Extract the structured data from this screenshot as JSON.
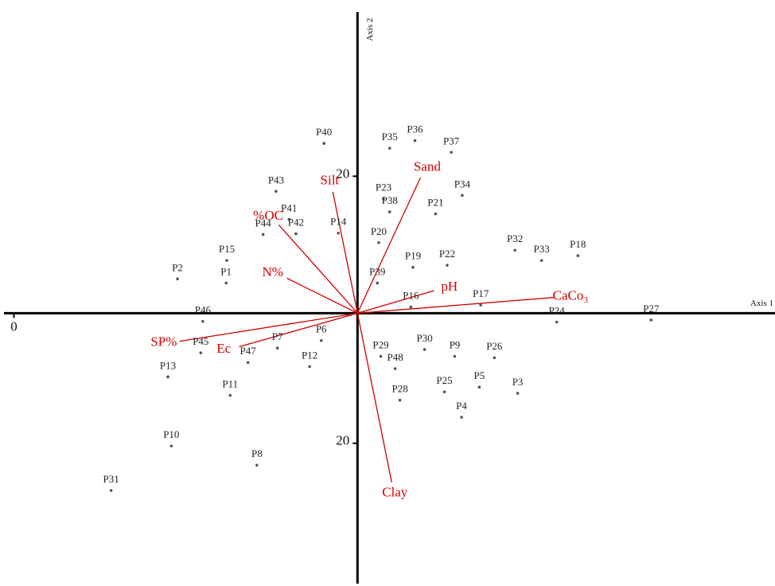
{
  "chart_data": {
    "type": "biplot",
    "x_label": "Axis 1",
    "y_label": "Axis 2",
    "xlim": [
      -52,
      61
    ],
    "ylim": [
      -39.5,
      44
    ],
    "xticks": [
      {
        "value": -50.2,
        "label": "0"
      }
    ],
    "yticks": [
      20,
      {
        "value": -19,
        "label": "20"
      }
    ],
    "point_color": "#555555",
    "vector_color": "#d00000",
    "points": [
      {
        "label": "P40",
        "x": -4.9,
        "y": 24.8
      },
      {
        "label": "P35",
        "x": 4.7,
        "y": 24.1
      },
      {
        "label": "P36",
        "x": 8.4,
        "y": 25.2
      },
      {
        "label": "P37",
        "x": 13.7,
        "y": 23.5
      },
      {
        "label": "P43",
        "x": -11.9,
        "y": 17.8
      },
      {
        "label": "P23",
        "x": 3.8,
        "y": 16.7
      },
      {
        "label": "P34",
        "x": 15.3,
        "y": 17.2
      },
      {
        "label": "P41",
        "x": -10,
        "y": 13.7
      },
      {
        "label": "P38",
        "x": 4.7,
        "y": 14.8
      },
      {
        "label": "P21",
        "x": 11.4,
        "y": 14.5
      },
      {
        "label": "P42",
        "x": -9,
        "y": 11.6
      },
      {
        "label": "P44",
        "x": -13.8,
        "y": 11.5
      },
      {
        "label": "P14",
        "x": -2.8,
        "y": 11.7
      },
      {
        "label": "P20",
        "x": 3.1,
        "y": 10.3
      },
      {
        "label": "P15",
        "x": -19.1,
        "y": 7.7
      },
      {
        "label": "P32",
        "x": 23,
        "y": 9.2
      },
      {
        "label": "P18",
        "x": 32.2,
        "y": 8.4
      },
      {
        "label": "P33",
        "x": 26.9,
        "y": 7.7
      },
      {
        "label": "P19",
        "x": 8.1,
        "y": 6.7
      },
      {
        "label": "P22",
        "x": 13.1,
        "y": 7
      },
      {
        "label": "P39",
        "x": 2.9,
        "y": 4.4
      },
      {
        "label": "P2",
        "x": -26.3,
        "y": 5
      },
      {
        "label": "P1",
        "x": -19.2,
        "y": 4.4
      },
      {
        "label": "P16",
        "x": 7.8,
        "y": 0.9
      },
      {
        "label": "P17",
        "x": 18,
        "y": 1.2
      },
      {
        "label": "P24",
        "x": 29.1,
        "y": -1.3
      },
      {
        "label": "P27",
        "x": 42.9,
        "y": -1
      },
      {
        "label": "P46",
        "x": -22.6,
        "y": -1.2
      },
      {
        "label": "P7",
        "x": -11.7,
        "y": -5.1
      },
      {
        "label": "P6",
        "x": -5.3,
        "y": -4
      },
      {
        "label": "P29",
        "x": 3.4,
        "y": -6.3
      },
      {
        "label": "P30",
        "x": 9.8,
        "y": -5.3
      },
      {
        "label": "P9",
        "x": 14.2,
        "y": -6.3
      },
      {
        "label": "P26",
        "x": 20,
        "y": -6.5
      },
      {
        "label": "P45",
        "x": -22.9,
        "y": -5.8
      },
      {
        "label": "P47",
        "x": -16,
        "y": -7.2
      },
      {
        "label": "P12",
        "x": -7,
        "y": -7.8
      },
      {
        "label": "P48",
        "x": 5.5,
        "y": -8.1
      },
      {
        "label": "P25",
        "x": 12.7,
        "y": -11.5
      },
      {
        "label": "P13",
        "x": -27.7,
        "y": -9.3
      },
      {
        "label": "P5",
        "x": 17.8,
        "y": -10.8
      },
      {
        "label": "P3",
        "x": 23.4,
        "y": -11.7
      },
      {
        "label": "P11",
        "x": -18.6,
        "y": -12
      },
      {
        "label": "P28",
        "x": 6.2,
        "y": -12.7
      },
      {
        "label": "P4",
        "x": 15.2,
        "y": -15.2
      },
      {
        "label": "P10",
        "x": -27.2,
        "y": -19.4
      },
      {
        "label": "P8",
        "x": -14.7,
        "y": -22.2
      },
      {
        "label": "P31",
        "x": -36,
        "y": -25.9
      }
    ],
    "vectors": [
      {
        "label": "Sand",
        "x": 9.2,
        "y": 19.8
      },
      {
        "label": "Silt",
        "x": -3.6,
        "y": 17.7
      },
      {
        "label": "%OC",
        "x": -11.5,
        "y": 12.9
      },
      {
        "label": "N%",
        "x": -10.3,
        "y": 5.1
      },
      {
        "label": "pH",
        "x": 11.2,
        "y": 3.3
      },
      {
        "label": "CaCo₃",
        "x": 28.8,
        "y": 2.3
      },
      {
        "label": "SP%",
        "x": -26,
        "y": -4.1
      },
      {
        "label": "Ec",
        "x": -17.3,
        "y": -4.9
      },
      {
        "label": "Clay",
        "x": 5,
        "y": -24.7
      }
    ]
  }
}
